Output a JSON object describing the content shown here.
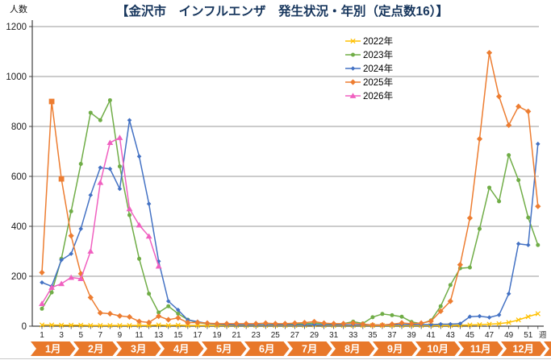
{
  "chart_data": {
    "type": "line",
    "title": "【金沢市　インフルエンザ　発生状況・年別（定点数16）】",
    "ylabel": "人数",
    "x_axis_right_label": "週",
    "ylim": [
      0,
      1200
    ],
    "ytick_step": 200,
    "ytick_labels": [
      "0",
      "200",
      "400",
      "600",
      "800",
      "1000",
      "1200"
    ],
    "weeks": 52,
    "xtick_labels": [
      "1",
      "3",
      "5",
      "7",
      "9",
      "11",
      "13",
      "15",
      "17",
      "19",
      "21",
      "23",
      "25",
      "27",
      "29",
      "31",
      "33",
      "35",
      "37",
      "39",
      "41",
      "43",
      "45",
      "47",
      "49",
      "51"
    ],
    "grid": "horizontal-only",
    "legend_position": "upper-right-inside",
    "axis_color": "#404040",
    "grid_color": "#9a9a9a",
    "series": [
      {
        "name": "2022年",
        "color": "#FFC000",
        "marker": "x-star",
        "values": [
          5,
          5,
          4,
          4,
          4,
          3,
          3,
          3,
          3,
          3,
          3,
          3,
          5,
          3,
          4,
          3,
          3,
          3,
          3,
          3,
          3,
          3,
          3,
          3,
          3,
          3,
          3,
          3,
          5,
          3,
          3,
          3,
          3,
          3,
          3,
          3,
          3,
          3,
          3,
          3,
          3,
          3,
          3,
          4,
          5,
          6,
          8,
          10,
          15,
          25,
          38,
          50
        ]
      },
      {
        "name": "2023年",
        "color": "#70AD47",
        "marker": "circle",
        "values": [
          70,
          135,
          270,
          460,
          650,
          855,
          825,
          905,
          640,
          445,
          270,
          130,
          55,
          80,
          50,
          26,
          14,
          10,
          8,
          6,
          5,
          5,
          5,
          6,
          6,
          6,
          8,
          10,
          12,
          10,
          8,
          10,
          18,
          11,
          36,
          49,
          44,
          38,
          17,
          10,
          23,
          80,
          165,
          232,
          235,
          390,
          555,
          500,
          685,
          585,
          435,
          325
        ]
      },
      {
        "name": "2024年",
        "color": "#4472C4",
        "marker": "diamond-small",
        "values": [
          175,
          160,
          265,
          290,
          390,
          525,
          635,
          630,
          550,
          825,
          680,
          490,
          260,
          100,
          65,
          25,
          18,
          11,
          8,
          6,
          5,
          5,
          5,
          5,
          5,
          5,
          5,
          5,
          6,
          5,
          5,
          5,
          5,
          5,
          5,
          5,
          6,
          6,
          6,
          6,
          6,
          8,
          8,
          10,
          38,
          40,
          35,
          45,
          130,
          330,
          325,
          730
        ]
      },
      {
        "name": "2025年",
        "color": "#ED7D31",
        "marker": "diamond",
        "square_marker_weeks": [
          2,
          3
        ],
        "values": [
          215,
          900,
          590,
          362,
          210,
          115,
          53,
          50,
          41,
          37,
          19,
          15,
          40,
          26,
          33,
          14,
          15,
          12,
          10,
          10,
          10,
          10,
          10,
          12,
          10,
          10,
          12,
          14,
          18,
          12,
          10,
          10,
          12,
          8,
          5,
          5,
          8,
          13,
          10,
          12,
          20,
          60,
          100,
          246,
          433,
          750,
          1095,
          920,
          805,
          880,
          860,
          480
        ]
      },
      {
        "name": "2026年",
        "color": "#F060C0",
        "marker": "triangle",
        "values": [
          90,
          155,
          170,
          195,
          190,
          300,
          575,
          735,
          755,
          470,
          405,
          360,
          240
        ]
      }
    ],
    "month_band": {
      "labels": [
        "1月",
        "2月",
        "3月",
        "4月",
        "5月",
        "6月",
        "7月",
        "8月",
        "9月",
        "10月",
        "11月",
        "12月"
      ],
      "band_color": "#E8782A",
      "text_color": "#ffffff"
    }
  }
}
